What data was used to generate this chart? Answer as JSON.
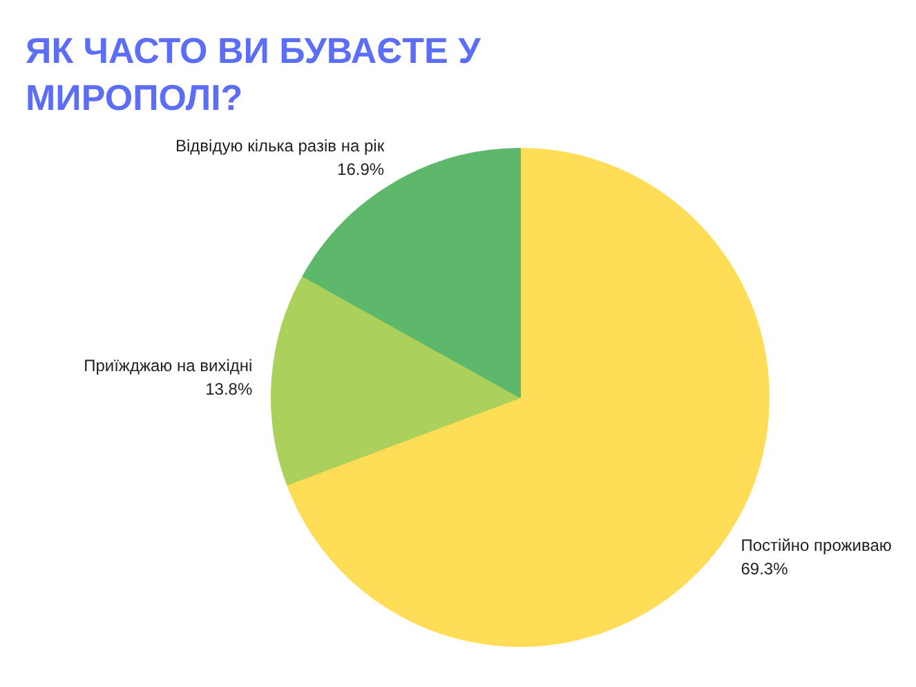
{
  "chart_data": {
    "type": "pie",
    "title": "ЯК ЧАСТО ВИ БУВАЄТЕ У МИРОПОЛІ?",
    "categories": [
      "Постійно проживаю",
      "Приїжджаю на вихідні",
      "Відвідую кілька разів на рік"
    ],
    "values": [
      69.3,
      13.8,
      16.9
    ],
    "value_labels": [
      "69.3%",
      "13.8%",
      "16.9%"
    ],
    "colors": [
      "#ffdd57",
      "#abd05b",
      "#5db86b"
    ]
  }
}
